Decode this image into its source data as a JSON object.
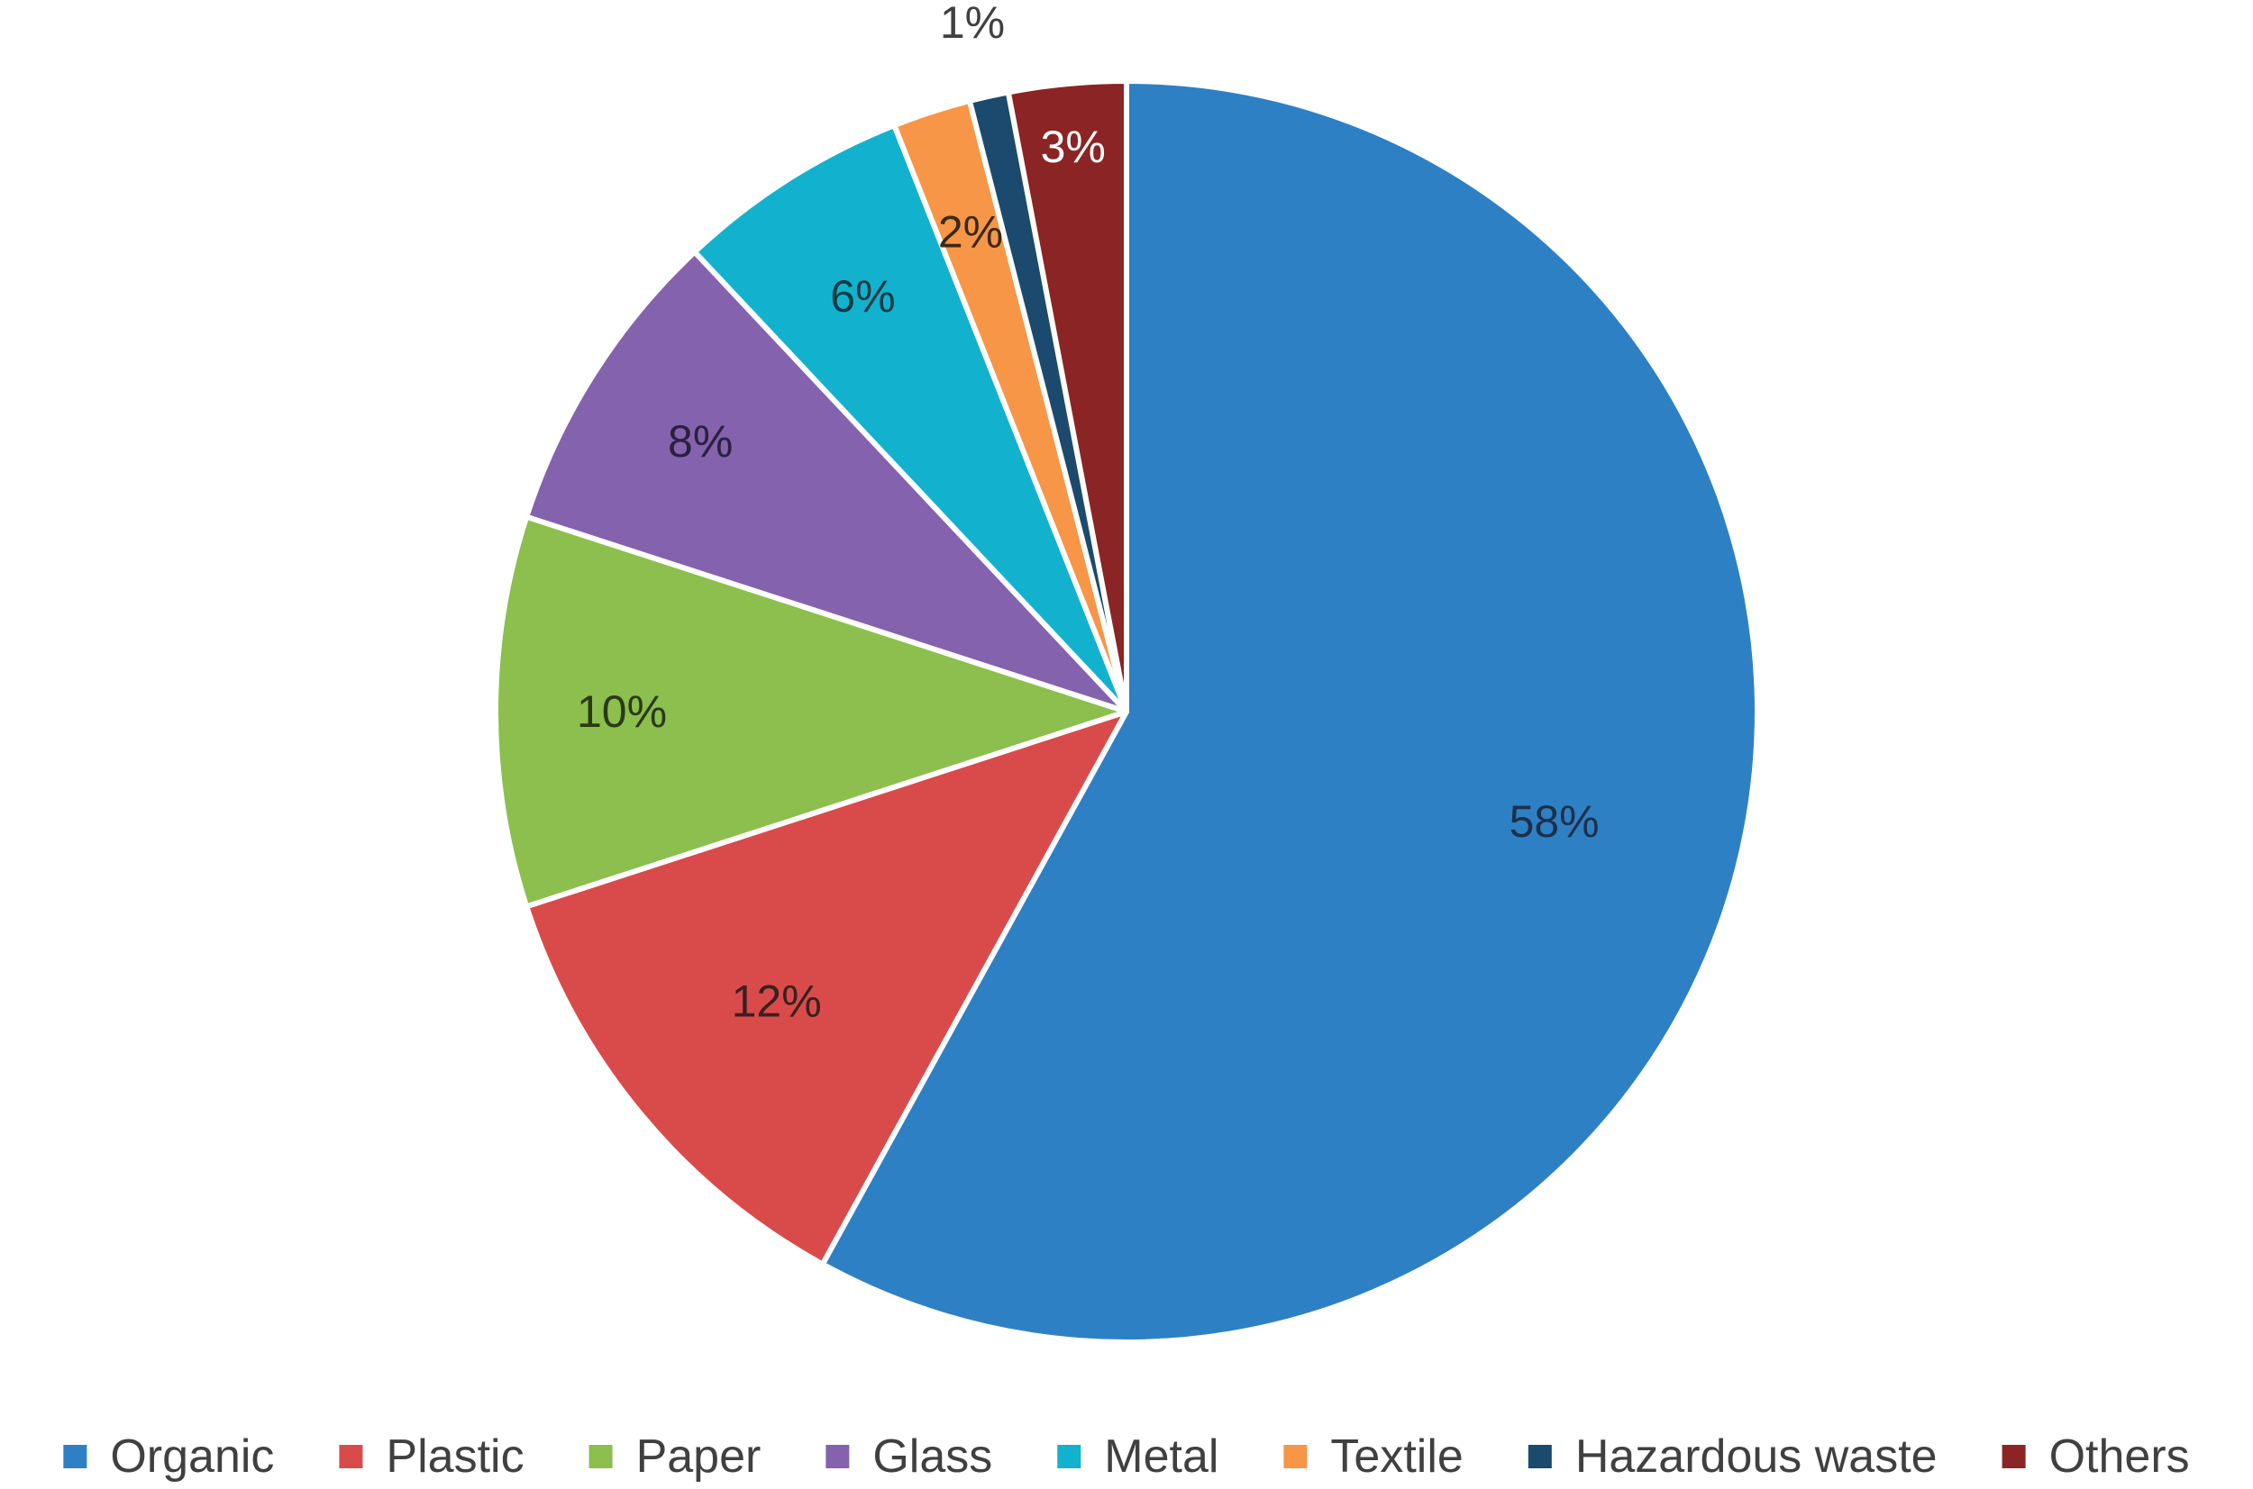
{
  "chart_data": {
    "type": "pie",
    "title": "",
    "start_angle_deg": 0,
    "direction": "clockwise",
    "slices": [
      {
        "name": "Organic",
        "value": 58,
        "label": "58%",
        "color": "#2E80C4",
        "label_color": "#1F2F4A"
      },
      {
        "name": "Plastic",
        "value": 12,
        "label": "12%",
        "color": "#D94B4B",
        "label_color": "#3A2020"
      },
      {
        "name": "Paper",
        "value": 10,
        "label": "10%",
        "color": "#8CBF4D",
        "label_color": "#2A3A18"
      },
      {
        "name": "Glass",
        "value": 8,
        "label": "8%",
        "color": "#8562AD",
        "label_color": "#2A2040"
      },
      {
        "name": "Metal",
        "value": 6,
        "label": "6%",
        "color": "#12B2CE",
        "label_color": "#133A44"
      },
      {
        "name": "Textile",
        "value": 2,
        "label": "2%",
        "color": "#F79646",
        "label_color": "#3A2A18"
      },
      {
        "name": "Hazardous waste",
        "value": 1,
        "label": "1%",
        "color": "#1B4A6E",
        "label_color": "#404040"
      },
      {
        "name": "Others",
        "value": 3,
        "label": "3%",
        "color": "#8B2424",
        "label_color": "#FFFFFF"
      }
    ],
    "legend": {
      "position": "bottom",
      "entries": [
        "Organic",
        "Plastic",
        "Paper",
        "Glass",
        "Metal",
        "Textile",
        "Hazardous waste",
        "Others"
      ]
    }
  }
}
